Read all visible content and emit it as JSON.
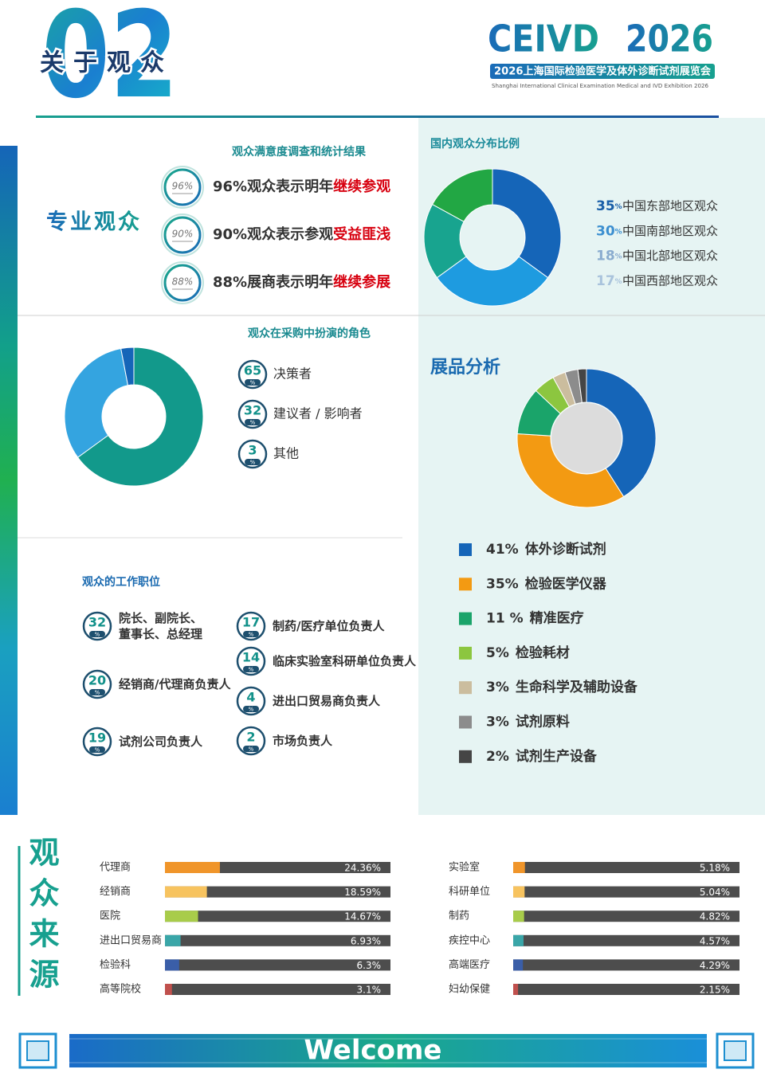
{
  "header": {
    "number": "02",
    "title": "关于观众",
    "brand": "CEIVD",
    "year": "2026",
    "subtitle": "2026上海国际检验医学及体外诊断试剂展览会",
    "subtitle_en": "Shanghai International Clinical Examination Medical and IVD Exhibition 2026"
  },
  "satisfaction": {
    "label": "专业观众",
    "title": "观众满意度调查和统计结果",
    "items": [
      {
        "badge": "96%",
        "text": "96%观众表示明年",
        "highlight": "继续参观"
      },
      {
        "badge": "90%",
        "text": "90%观众表示参观",
        "highlight": "受益匪浅"
      },
      {
        "badge": "88%",
        "text": "88%展商表示明年",
        "highlight": "继续参展"
      }
    ]
  },
  "job_positions": {
    "title": "观众的工作职位",
    "unit": "%",
    "items": [
      {
        "value": 32,
        "label": "院长、副院长、董事长、总经理"
      },
      {
        "value": 20,
        "label": "经销商/代理商负责人"
      },
      {
        "value": 19,
        "label": "试剂公司负责人"
      },
      {
        "value": 17,
        "label": "制药/医疗单位负责人"
      },
      {
        "value": 14,
        "label": "临床实验室科研单位负责人"
      },
      {
        "value": 4,
        "label": "进出口贸易商负责人"
      },
      {
        "value": 2,
        "label": "市场负责人"
      }
    ]
  },
  "chart_data": [
    {
      "type": "donut",
      "title": "国内观众分布比例",
      "categories": [
        "中国东部地区观众",
        "中国南部地区观众",
        "中国北部地区观众",
        "中国西部地区观众"
      ],
      "values": [
        35,
        30,
        18,
        17
      ],
      "unit": "%",
      "colors": [
        "#1565b8",
        "#1e9be0",
        "#18a48f",
        "#22a744"
      ]
    },
    {
      "type": "donut",
      "title": "观众在采购中扮演的角色",
      "categories": [
        "决策者",
        "建议者 / 影响者",
        "其他"
      ],
      "values": [
        65,
        32,
        3
      ],
      "unit": "%",
      "colors": [
        "#12998b",
        "#34a4e0",
        "#1565b8"
      ]
    },
    {
      "type": "donut",
      "title": "展品分析",
      "categories": [
        "体外诊断试剂",
        "检验医学仪器",
        "精准医疗",
        "检验耗材",
        "生命科学及辅助设备",
        "试剂原料",
        "试剂生产设备"
      ],
      "values": [
        41,
        35,
        11,
        5,
        3,
        3,
        2
      ],
      "value_labels": [
        "41%",
        "35%",
        "11 %",
        "5%",
        "3%",
        "3%",
        "2%"
      ],
      "colors": [
        "#1565b8",
        "#f39a12",
        "#1aa46a",
        "#8cc63f",
        "#cbbd9e",
        "#8c8c8c",
        "#454545"
      ]
    },
    {
      "type": "bar",
      "title": "观众来源",
      "categories": [
        "代理商",
        "经销商",
        "医院",
        "进出口贸易商",
        "检验科",
        "高等院校"
      ],
      "values": [
        24.36,
        18.59,
        14.67,
        6.93,
        6.3,
        3.1
      ],
      "value_labels": [
        "24.36%",
        "18.59%",
        "14.67%",
        "6.93%",
        "6.3%",
        "3.1%"
      ],
      "colors": [
        "#f0952a",
        "#f7c35f",
        "#a8cc4a",
        "#3aa6a8",
        "#3a5ea8",
        "#c0504d"
      ],
      "xlim": [
        0,
        100
      ]
    },
    {
      "type": "bar",
      "categories": [
        "实验室",
        "科研单位",
        "制药",
        "疾控中心",
        "高端医疗",
        "妇幼保健"
      ],
      "values": [
        5.18,
        5.04,
        4.82,
        4.57,
        4.29,
        2.15
      ],
      "value_labels": [
        "5.18%",
        "5.04%",
        "4.82%",
        "4.57%",
        "4.29%",
        "2.15%"
      ],
      "colors": [
        "#f0952a",
        "#f7c35f",
        "#a8cc4a",
        "#3aa6a8",
        "#3a5ea8",
        "#c0504d"
      ],
      "xlim": [
        0,
        100
      ]
    }
  ],
  "footer": {
    "welcome": "Welcome"
  }
}
